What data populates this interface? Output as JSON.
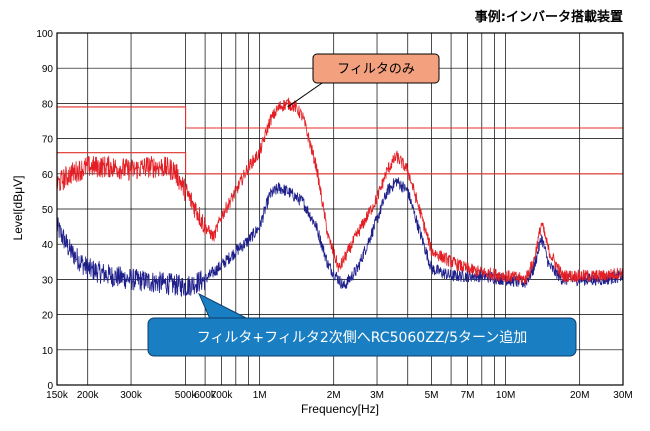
{
  "chart_data": {
    "type": "line",
    "title": "事例:インバータ搭載装置",
    "xlabel": "Frequency[Hz]",
    "ylabel": "Level[dBμV]",
    "xscale": "log",
    "xlim_hz": [
      150000,
      30000000
    ],
    "ylim": [
      0,
      100
    ],
    "grid": true,
    "x_ticks": [
      {
        "hz": 150000,
        "label": "150k"
      },
      {
        "hz": 200000,
        "label": "200k"
      },
      {
        "hz": 300000,
        "label": "300k"
      },
      {
        "hz": 500000,
        "label": "500k"
      },
      {
        "hz": 600000,
        "label": "600k"
      },
      {
        "hz": 700000,
        "label": "700k"
      },
      {
        "hz": 800000,
        "label": ""
      },
      {
        "hz": 900000,
        "label": ""
      },
      {
        "hz": 1000000,
        "label": "1M"
      },
      {
        "hz": 2000000,
        "label": "2M"
      },
      {
        "hz": 3000000,
        "label": "3M"
      },
      {
        "hz": 4000000,
        "label": ""
      },
      {
        "hz": 5000000,
        "label": "5M"
      },
      {
        "hz": 6000000,
        "label": ""
      },
      {
        "hz": 7000000,
        "label": "7M"
      },
      {
        "hz": 8000000,
        "label": ""
      },
      {
        "hz": 9000000,
        "label": ""
      },
      {
        "hz": 10000000,
        "label": "10M"
      },
      {
        "hz": 20000000,
        "label": "20M"
      },
      {
        "hz": 30000000,
        "label": "30M"
      }
    ],
    "y_ticks": [
      "0",
      "10",
      "20",
      "30",
      "40",
      "50",
      "60",
      "70",
      "80",
      "90",
      "100"
    ],
    "limit_lines": [
      {
        "color": "#e0302a",
        "points": [
          [
            150000,
            79
          ],
          [
            500000,
            79
          ],
          [
            500000,
            73
          ],
          [
            30000000,
            73
          ]
        ]
      },
      {
        "color": "#e0302a",
        "points": [
          [
            150000,
            66
          ],
          [
            500000,
            66
          ],
          [
            500000,
            60
          ],
          [
            30000000,
            60
          ]
        ]
      }
    ],
    "series": [
      {
        "color": "#e31e24",
        "points": [
          [
            150000,
            57
          ],
          [
            170000,
            60
          ],
          [
            200000,
            62
          ],
          [
            250000,
            62
          ],
          [
            300000,
            61
          ],
          [
            350000,
            62
          ],
          [
            400000,
            62
          ],
          [
            450000,
            61
          ],
          [
            500000,
            55
          ],
          [
            550000,
            50
          ],
          [
            600000,
            45
          ],
          [
            650000,
            42
          ],
          [
            700000,
            48
          ],
          [
            800000,
            55
          ],
          [
            900000,
            62
          ],
          [
            1000000,
            66
          ],
          [
            1100000,
            75
          ],
          [
            1200000,
            79
          ],
          [
            1300000,
            80
          ],
          [
            1400000,
            79
          ],
          [
            1500000,
            76
          ],
          [
            1700000,
            62
          ],
          [
            1900000,
            42
          ],
          [
            2100000,
            33
          ],
          [
            2500000,
            43
          ],
          [
            3000000,
            53
          ],
          [
            3300000,
            61
          ],
          [
            3600000,
            65
          ],
          [
            4000000,
            61
          ],
          [
            4500000,
            49
          ],
          [
            5000000,
            38
          ],
          [
            6000000,
            35
          ],
          [
            7000000,
            33
          ],
          [
            8000000,
            32
          ],
          [
            10000000,
            31
          ],
          [
            12000000,
            30
          ],
          [
            13000000,
            35
          ],
          [
            14000000,
            46
          ],
          [
            15000000,
            38
          ],
          [
            17000000,
            31
          ],
          [
            20000000,
            31
          ],
          [
            25000000,
            31
          ],
          [
            30000000,
            32
          ]
        ]
      },
      {
        "color": "#1f1f8c",
        "points": [
          [
            150000,
            45
          ],
          [
            170000,
            38
          ],
          [
            200000,
            33
          ],
          [
            250000,
            31
          ],
          [
            300000,
            30
          ],
          [
            400000,
            29
          ],
          [
            500000,
            28
          ],
          [
            600000,
            30
          ],
          [
            700000,
            34
          ],
          [
            800000,
            38
          ],
          [
            900000,
            41
          ],
          [
            1000000,
            45
          ],
          [
            1100000,
            54
          ],
          [
            1200000,
            56
          ],
          [
            1300000,
            55
          ],
          [
            1500000,
            52
          ],
          [
            1700000,
            45
          ],
          [
            1900000,
            34
          ],
          [
            2200000,
            28
          ],
          [
            2500000,
            33
          ],
          [
            3000000,
            47
          ],
          [
            3300000,
            55
          ],
          [
            3600000,
            58
          ],
          [
            4000000,
            55
          ],
          [
            4500000,
            43
          ],
          [
            5000000,
            33
          ],
          [
            6000000,
            31
          ],
          [
            8000000,
            31
          ],
          [
            10000000,
            30
          ],
          [
            12000000,
            29
          ],
          [
            13000000,
            33
          ],
          [
            14000000,
            42
          ],
          [
            15000000,
            34
          ],
          [
            17000000,
            30
          ],
          [
            20000000,
            30
          ],
          [
            25000000,
            30
          ],
          [
            30000000,
            31
          ]
        ]
      }
    ],
    "annotations": [
      {
        "text": "フィルタのみ",
        "target_series": 0,
        "target": [
          1300000,
          79
        ],
        "fill": "#f2a07e"
      },
      {
        "text": "フィルタ+フィルタ2次側へRC5060ZZ/5ターン追加",
        "target_series": 1,
        "target": [
          600000,
          27
        ],
        "fill": "#1a7ec2"
      }
    ]
  }
}
